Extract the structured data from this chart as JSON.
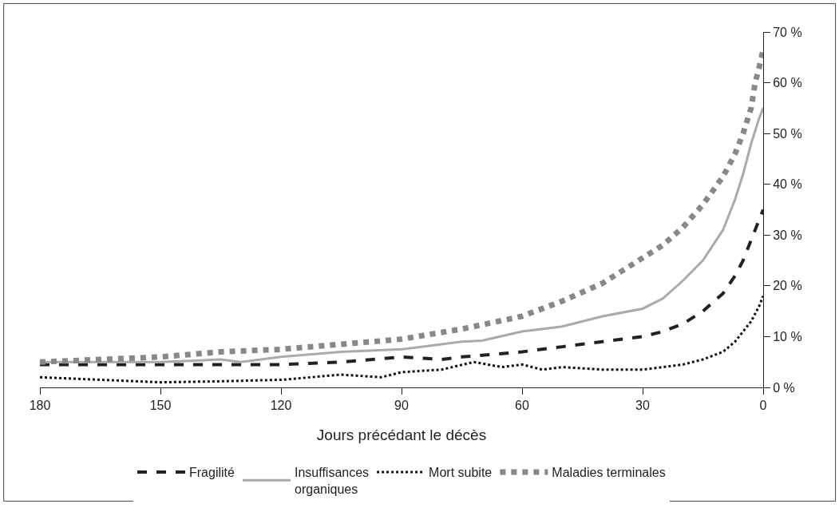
{
  "chart_data": {
    "type": "line",
    "xlabel": "Jours précédant le décès",
    "xlim": [
      180,
      0
    ],
    "xticks": [
      180,
      150,
      120,
      90,
      60,
      30,
      0
    ],
    "ylim": [
      0,
      70
    ],
    "yticks": [
      {
        "value": 0,
        "label": "0 %"
      },
      {
        "value": 10,
        "label": "10 %"
      },
      {
        "value": 20,
        "label": "20 %"
      },
      {
        "value": 30,
        "label": "30 %"
      },
      {
        "value": 40,
        "label": "40 %"
      },
      {
        "value": 50,
        "label": "50 %"
      },
      {
        "value": 60,
        "label": "60 %"
      },
      {
        "value": 70,
        "label": "70 %"
      }
    ],
    "legend": "bottom",
    "series": [
      {
        "name": "Fragilité",
        "color": "#222222",
        "line_style": "dashed",
        "x": [
          180,
          165,
          150,
          135,
          120,
          105,
          90,
          80,
          75,
          60,
          50,
          40,
          30,
          25,
          20,
          15,
          10,
          7,
          5,
          3,
          1,
          0
        ],
        "values": [
          4.5,
          4.5,
          4.5,
          4.5,
          4.5,
          5,
          6,
          5.5,
          6,
          7,
          8,
          9,
          10,
          11,
          12.5,
          15,
          18.5,
          22,
          25,
          29,
          33,
          35
        ]
      },
      {
        "name": "Insuffisances\norganiques",
        "color": "#aaaaaa",
        "line_style": "solid",
        "x": [
          180,
          165,
          150,
          135,
          130,
          120,
          105,
          90,
          75,
          70,
          60,
          50,
          40,
          30,
          25,
          20,
          15,
          10,
          7,
          5,
          3,
          1,
          0
        ],
        "values": [
          5,
          5,
          5,
          5.5,
          5,
          6,
          7,
          7.5,
          9,
          9.2,
          11,
          12,
          14,
          15.5,
          17.5,
          21,
          25,
          31,
          37,
          42,
          48,
          53,
          55
        ]
      },
      {
        "name": "Mort subite",
        "color": "#111111",
        "line_style": "dotted",
        "x": [
          180,
          165,
          150,
          135,
          120,
          105,
          95,
          90,
          80,
          72,
          65,
          60,
          55,
          50,
          40,
          30,
          20,
          15,
          10,
          7,
          5,
          3,
          1,
          0
        ],
        "values": [
          2,
          1.5,
          1,
          1.2,
          1.5,
          2.5,
          2,
          3,
          3.5,
          5,
          4,
          4.5,
          3.5,
          4,
          3.5,
          3.5,
          4.5,
          5.5,
          7,
          9,
          11,
          13,
          16,
          18
        ]
      },
      {
        "name": "Maladies terminales",
        "color": "#888888",
        "line_style": "dotted",
        "x": [
          180,
          165,
          150,
          135,
          120,
          105,
          90,
          75,
          60,
          50,
          40,
          30,
          25,
          20,
          15,
          10,
          7,
          5,
          3,
          2,
          1,
          0
        ],
        "values": [
          5,
          5.5,
          6,
          7,
          7.5,
          8.5,
          9.5,
          11.5,
          14,
          17,
          20.5,
          25.5,
          28,
          31.5,
          36,
          41.5,
          46,
          50,
          55,
          60,
          63,
          66.5
        ]
      }
    ]
  }
}
